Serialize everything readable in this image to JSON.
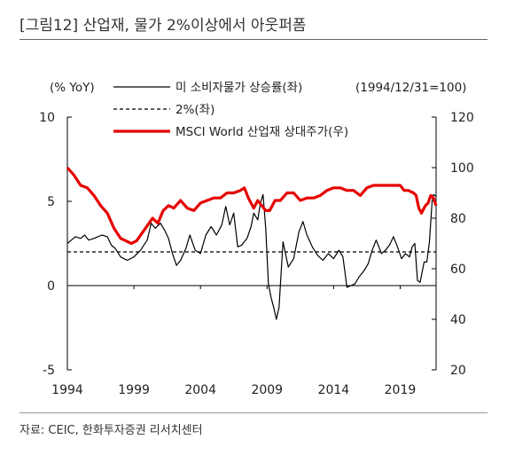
{
  "title": "[그림12]  산업재, 물가 2%이상에서 아웃퍼폼",
  "source": "자료: CEIC, 한화투자증권 리서치센터",
  "chart_data": {
    "type": "line",
    "left_unit_label": "(% YoY)",
    "base_date_label": "(1994/12/31=100)",
    "left_axis": {
      "ylim": [
        -5,
        10
      ],
      "ticks": [
        "-5",
        "0",
        "5",
        "10"
      ]
    },
    "right_axis": {
      "ylim": [
        20,
        120
      ],
      "ticks": [
        "20",
        "40",
        "60",
        "80",
        "100",
        "120"
      ]
    },
    "x_axis": {
      "xlim": [
        1994,
        2021.7
      ],
      "ticks": [
        "1994",
        "1999",
        "2004",
        "2009",
        "2014",
        "2019"
      ]
    },
    "zero_line": 0,
    "series": [
      {
        "name": "미 소비자물가  상승률(좌)",
        "axis": "left",
        "color": "#000000",
        "style": "solid",
        "x": [
          1994.0,
          1994.3,
          1994.6,
          1995.0,
          1995.3,
          1995.6,
          1996.0,
          1996.3,
          1996.6,
          1997.0,
          1997.3,
          1997.6,
          1998.0,
          1998.5,
          1999.0,
          1999.5,
          2000.0,
          2000.3,
          2000.6,
          2001.0,
          2001.3,
          2001.6,
          2001.9,
          2002.2,
          2002.5,
          2002.9,
          2003.2,
          2003.6,
          2004.0,
          2004.4,
          2004.8,
          2005.2,
          2005.6,
          2005.9,
          2006.2,
          2006.5,
          2006.8,
          2007.1,
          2007.5,
          2007.8,
          2008.0,
          2008.3,
          2008.5,
          2008.7,
          2008.9,
          2009.1,
          2009.3,
          2009.5,
          2009.7,
          2009.9,
          2010.2,
          2010.6,
          2011.0,
          2011.4,
          2011.7,
          2012.0,
          2012.4,
          2012.8,
          2013.2,
          2013.6,
          2014.0,
          2014.4,
          2014.7,
          2015.0,
          2015.3,
          2015.6,
          2015.9,
          2016.3,
          2016.6,
          2016.9,
          2017.2,
          2017.6,
          2017.9,
          2018.2,
          2018.5,
          2018.8,
          2019.1,
          2019.4,
          2019.7,
          2019.9,
          2020.1,
          2020.3,
          2020.5,
          2020.8,
          2021.0,
          2021.2,
          2021.4,
          2021.5,
          2021.7
        ],
        "values": [
          2.5,
          2.7,
          2.9,
          2.8,
          3.0,
          2.7,
          2.8,
          2.9,
          3.0,
          2.9,
          2.4,
          2.2,
          1.7,
          1.5,
          1.7,
          2.1,
          2.7,
          3.7,
          3.4,
          3.7,
          3.3,
          2.8,
          1.9,
          1.2,
          1.5,
          2.2,
          3.0,
          2.1,
          1.9,
          3.0,
          3.5,
          3.0,
          3.6,
          4.7,
          3.6,
          4.3,
          2.3,
          2.4,
          2.8,
          3.5,
          4.3,
          3.9,
          4.9,
          5.4,
          3.4,
          0.1,
          -0.7,
          -1.3,
          -2.0,
          -1.3,
          2.6,
          1.1,
          1.6,
          3.2,
          3.8,
          3.0,
          2.3,
          1.8,
          1.5,
          1.9,
          1.6,
          2.1,
          1.7,
          -0.1,
          0.0,
          0.1,
          0.5,
          0.9,
          1.3,
          2.1,
          2.7,
          1.9,
          2.1,
          2.4,
          2.9,
          2.3,
          1.6,
          1.9,
          1.7,
          2.3,
          2.5,
          0.3,
          0.2,
          1.4,
          1.4,
          2.6,
          5.0,
          5.4,
          5.3
        ]
      },
      {
        "name": "2%(좌)",
        "axis": "left",
        "color": "#000000",
        "style": "dashed",
        "x": [
          1994.0,
          2021.7
        ],
        "values": [
          2,
          2
        ]
      },
      {
        "name": "MSCI World  산업재  상대주가(우)",
        "axis": "right",
        "color": "#e60000",
        "style": "solid",
        "x": [
          1994.0,
          1994.5,
          1995.0,
          1995.5,
          1996.0,
          1996.5,
          1997.0,
          1997.5,
          1998.0,
          1998.4,
          1998.8,
          1999.2,
          1999.6,
          2000.0,
          2000.4,
          2000.8,
          2001.2,
          2001.6,
          2002.0,
          2002.5,
          2003.0,
          2003.5,
          2004.0,
          2004.5,
          2005.0,
          2005.5,
          2006.0,
          2006.5,
          2007.0,
          2007.3,
          2007.6,
          2008.0,
          2008.3,
          2008.6,
          2008.9,
          2009.2,
          2009.6,
          2010.0,
          2010.5,
          2011.0,
          2011.5,
          2012.0,
          2012.5,
          2013.0,
          2013.5,
          2014.0,
          2014.5,
          2015.0,
          2015.5,
          2016.0,
          2016.5,
          2017.0,
          2017.5,
          2018.0,
          2018.5,
          2019.0,
          2019.3,
          2019.6,
          2020.0,
          2020.2,
          2020.4,
          2020.6,
          2020.9,
          2021.1,
          2021.3,
          2021.5,
          2021.7
        ],
        "values": [
          100,
          97,
          93,
          92,
          89,
          85,
          82,
          76,
          72,
          71,
          70,
          71,
          74,
          77,
          80,
          78,
          83,
          85,
          84,
          87,
          84,
          83,
          86,
          87,
          88,
          88,
          90,
          90,
          91,
          92,
          88,
          84,
          87,
          85,
          83,
          83,
          87,
          87,
          90,
          90,
          87,
          88,
          88,
          89,
          91,
          92,
          92,
          91,
          91,
          89,
          92,
          93,
          93,
          93,
          93,
          93,
          91,
          91,
          90,
          89,
          84,
          82,
          85,
          86,
          89,
          88,
          85
        ]
      }
    ]
  }
}
